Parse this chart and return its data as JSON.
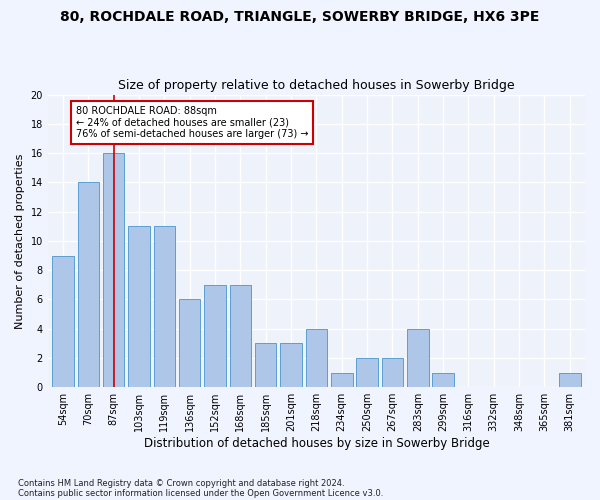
{
  "title1": "80, ROCHDALE ROAD, TRIANGLE, SOWERBY BRIDGE, HX6 3PE",
  "title2": "Size of property relative to detached houses in Sowerby Bridge",
  "xlabel": "Distribution of detached houses by size in Sowerby Bridge",
  "ylabel": "Number of detached properties",
  "categories": [
    "54sqm",
    "70sqm",
    "87sqm",
    "103sqm",
    "119sqm",
    "136sqm",
    "152sqm",
    "168sqm",
    "185sqm",
    "201sqm",
    "218sqm",
    "234sqm",
    "250sqm",
    "267sqm",
    "283sqm",
    "299sqm",
    "316sqm",
    "332sqm",
    "348sqm",
    "365sqm",
    "381sqm"
  ],
  "values": [
    9,
    14,
    16,
    11,
    11,
    6,
    7,
    7,
    3,
    3,
    4,
    1,
    2,
    2,
    4,
    1,
    0,
    0,
    0,
    0,
    1
  ],
  "bar_color": "#aec6e8",
  "bar_edge_color": "#5a9fd4",
  "vline_x": 2,
  "vline_color": "#cc0000",
  "annotation_line1": "80 ROCHDALE ROAD: 88sqm",
  "annotation_line2": "← 24% of detached houses are smaller (23)",
  "annotation_line3": "76% of semi-detached houses are larger (73) →",
  "annotation_box_color": "#ffffff",
  "annotation_box_edge": "#cc0000",
  "ylim": [
    0,
    20
  ],
  "yticks": [
    0,
    2,
    4,
    6,
    8,
    10,
    12,
    14,
    16,
    18,
    20
  ],
  "footer1": "Contains HM Land Registry data © Crown copyright and database right 2024.",
  "footer2": "Contains public sector information licensed under the Open Government Licence v3.0.",
  "bg_color": "#eef2fb",
  "grid_color": "#ffffff",
  "title1_fontsize": 10,
  "title2_fontsize": 9,
  "tick_fontsize": 7,
  "xlabel_fontsize": 8.5,
  "ylabel_fontsize": 8
}
